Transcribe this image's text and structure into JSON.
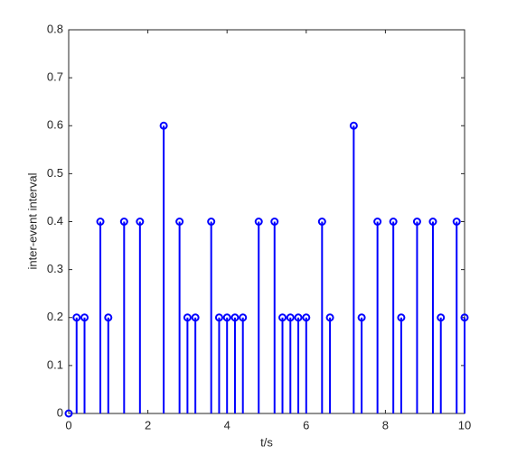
{
  "chart_data": {
    "type": "stem",
    "x_label": "t/s",
    "y_label": "inter-event interval",
    "x": [
      0,
      0.2,
      0.4,
      0.8,
      1.0,
      1.4,
      1.8,
      2.4,
      2.8,
      3.0,
      3.2,
      3.6,
      3.8,
      4.0,
      4.2,
      4.4,
      4.8,
      5.2,
      5.4,
      5.6,
      5.8,
      6.0,
      6.4,
      6.6,
      7.2,
      7.4,
      7.8,
      8.2,
      8.4,
      8.8,
      9.2,
      9.4,
      9.8,
      10
    ],
    "values": [
      0,
      0.2,
      0.2,
      0.4,
      0.2,
      0.4,
      0.4,
      0.6,
      0.4,
      0.2,
      0.2,
      0.4,
      0.2,
      0.2,
      0.2,
      0.2,
      0.4,
      0.4,
      0.2,
      0.2,
      0.2,
      0.2,
      0.4,
      0.2,
      0.6,
      0.2,
      0.4,
      0.4,
      0.2,
      0.4,
      0.4,
      0.2,
      0.4,
      0.2
    ],
    "color": "#0000ff",
    "xlim": [
      0,
      10
    ],
    "xticks": [
      0,
      2,
      4,
      6,
      8,
      10
    ],
    "ylim": [
      0,
      0.8
    ],
    "yticks": [
      0,
      0.1,
      0.2,
      0.3,
      0.4,
      0.5,
      0.6,
      0.7,
      0.8
    ],
    "grid": false
  }
}
